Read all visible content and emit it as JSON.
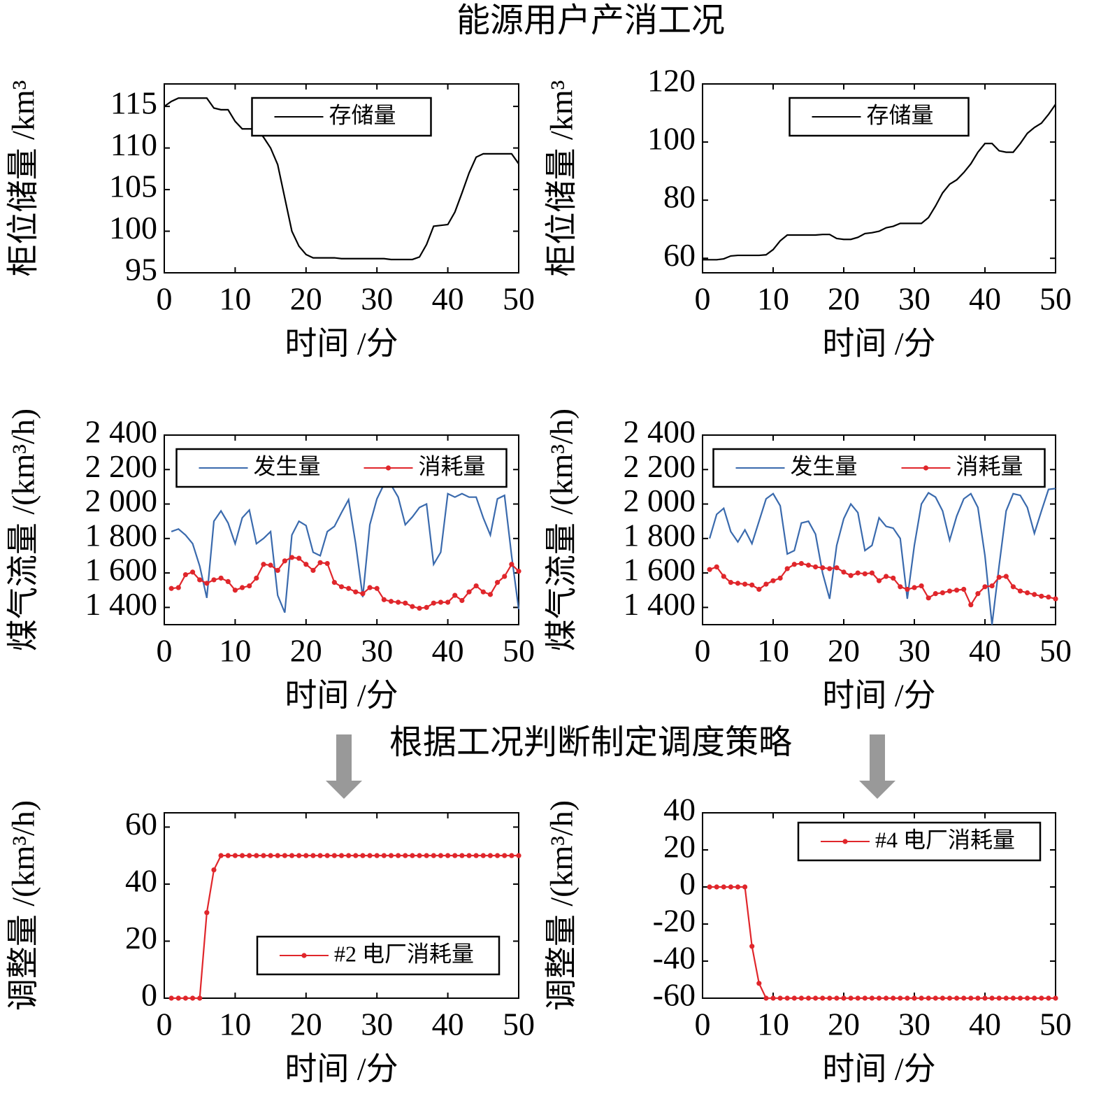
{
  "title": "能源用户产消工况",
  "caption": "根据工况判断制定调度策略",
  "chart_data": [
    {
      "type": "line",
      "xlabel": "时间 /分",
      "ylabel": "柜位储量 /km³",
      "legend": "upper center",
      "xlim": [
        0,
        50
      ],
      "xticks": [
        0,
        10,
        20,
        30,
        40,
        50
      ],
      "ylim": [
        95,
        117.7
      ],
      "yticks": [
        95,
        100,
        105,
        110,
        115
      ],
      "x": [
        0,
        1,
        2,
        3,
        4,
        5,
        6,
        7,
        8,
        9,
        10,
        11,
        12,
        13,
        14,
        15,
        16,
        17,
        18,
        19,
        20,
        21,
        22,
        23,
        24,
        25,
        26,
        27,
        28,
        29,
        30,
        31,
        32,
        33,
        34,
        35,
        36,
        37,
        38,
        39,
        40,
        41,
        42,
        43,
        44,
        45,
        46,
        47,
        48,
        49,
        50
      ],
      "series": [
        {
          "name": "存储量",
          "color": "#000000",
          "marker": false,
          "values": [
            115,
            115.6,
            116,
            116,
            116,
            116,
            116,
            114.8,
            114.6,
            114.6,
            113.2,
            112.3,
            112.3,
            112.3,
            111.3,
            110,
            108,
            104,
            100,
            98.2,
            97.2,
            96.8,
            96.8,
            96.8,
            96.8,
            96.7,
            96.7,
            96.7,
            96.7,
            96.7,
            96.7,
            96.7,
            96.6,
            96.6,
            96.6,
            96.6,
            96.9,
            98.4,
            100.6,
            100.7,
            100.8,
            102.3,
            104.6,
            107,
            108.9,
            109.3,
            109.3,
            109.3,
            109.3,
            109.3,
            108.1
          ]
        }
      ]
    },
    {
      "type": "line",
      "xlabel": "时间 /分",
      "ylabel": "柜位储量 /km³",
      "legend": "upper center",
      "xlim": [
        0,
        50
      ],
      "xticks": [
        0,
        10,
        20,
        30,
        40,
        50
      ],
      "ylim": [
        55,
        120
      ],
      "yticks": [
        60,
        80,
        100,
        120
      ],
      "x": [
        0,
        1,
        2,
        3,
        4,
        5,
        6,
        7,
        8,
        9,
        10,
        11,
        12,
        13,
        14,
        15,
        16,
        17,
        18,
        19,
        20,
        21,
        22,
        23,
        24,
        25,
        26,
        27,
        28,
        29,
        30,
        31,
        32,
        33,
        34,
        35,
        36,
        37,
        38,
        39,
        40,
        41,
        42,
        43,
        44,
        45,
        46,
        47,
        48,
        49,
        50
      ],
      "series": [
        {
          "name": "存储量",
          "color": "#000000",
          "marker": false,
          "values": [
            59.5,
            59.5,
            59.5,
            59.8,
            60.8,
            61,
            61,
            61,
            61,
            61.2,
            63,
            66,
            68,
            68,
            68,
            68,
            68,
            68.2,
            68.2,
            66.8,
            66.5,
            66.5,
            67.2,
            68.5,
            68.8,
            69.3,
            70.5,
            71,
            72,
            72,
            72,
            72,
            74,
            78,
            82.5,
            85.5,
            87,
            89.5,
            92.5,
            96.5,
            99.5,
            99.5,
            97,
            96.5,
            96.5,
            99.5,
            103,
            105,
            106.5,
            109.5,
            113
          ]
        }
      ]
    },
    {
      "type": "line",
      "xlabel": "时间 /分",
      "ylabel": "煤气流量 /(km³/h)",
      "legend": "upper center",
      "xlim": [
        0,
        50
      ],
      "xticks": [
        0,
        10,
        20,
        30,
        40,
        50
      ],
      "ylim": [
        1300,
        2400
      ],
      "yticks": [
        {
          "value": 1400,
          "label": "1 400"
        },
        {
          "value": 1600,
          "label": "1 600"
        },
        {
          "value": 1800,
          "label": "1 800"
        },
        {
          "value": 2000,
          "label": "2 000"
        },
        {
          "value": 2200,
          "label": "2 200"
        },
        {
          "value": 2400,
          "label": "2 400"
        }
      ],
      "x": [
        1,
        2,
        3,
        4,
        5,
        6,
        7,
        8,
        9,
        10,
        11,
        12,
        13,
        14,
        15,
        16,
        17,
        18,
        19,
        20,
        21,
        22,
        23,
        24,
        25,
        26,
        27,
        28,
        29,
        30,
        31,
        32,
        33,
        34,
        35,
        36,
        37,
        38,
        39,
        40,
        41,
        42,
        43,
        44,
        45,
        46,
        47,
        48,
        49,
        50
      ],
      "series": [
        {
          "name": "发生量",
          "color": "#3a6aad",
          "marker": false,
          "values": [
            1840,
            1855,
            1820,
            1770,
            1640,
            1455,
            1900,
            1960,
            1890,
            1770,
            1920,
            1965,
            1770,
            1800,
            1840,
            1470,
            1370,
            1820,
            1900,
            1875,
            1720,
            1700,
            1840,
            1870,
            1950,
            2025,
            1770,
            1460,
            1880,
            2030,
            2115,
            2110,
            2040,
            1880,
            1925,
            1980,
            2000,
            1650,
            1720,
            2060,
            2040,
            2060,
            2040,
            2040,
            1920,
            1820,
            2030,
            2050,
            1700,
            1390
          ]
        },
        {
          "name": "消耗量",
          "color": "#e0262b",
          "marker": true,
          "values": [
            1510,
            1515,
            1590,
            1605,
            1560,
            1540,
            1560,
            1570,
            1550,
            1500,
            1515,
            1525,
            1570,
            1650,
            1645,
            1615,
            1670,
            1690,
            1685,
            1650,
            1615,
            1660,
            1655,
            1545,
            1520,
            1510,
            1490,
            1480,
            1515,
            1510,
            1445,
            1435,
            1430,
            1425,
            1405,
            1395,
            1400,
            1425,
            1430,
            1430,
            1470,
            1440,
            1490,
            1525,
            1490,
            1475,
            1545,
            1580,
            1650,
            1610
          ]
        }
      ]
    },
    {
      "type": "line",
      "xlabel": "时间 /分",
      "ylabel": "煤气流量 /(km³/h)",
      "legend": "upper center",
      "xlim": [
        0,
        50
      ],
      "xticks": [
        0,
        10,
        20,
        30,
        40,
        50
      ],
      "ylim": [
        1300,
        2400
      ],
      "yticks": [
        {
          "value": 1400,
          "label": "1 400"
        },
        {
          "value": 1600,
          "label": "1 600"
        },
        {
          "value": 1800,
          "label": "1 800"
        },
        {
          "value": 2000,
          "label": "2 000"
        },
        {
          "value": 2200,
          "label": "2 200"
        },
        {
          "value": 2400,
          "label": "2 400"
        }
      ],
      "x": [
        1,
        2,
        3,
        4,
        5,
        6,
        7,
        8,
        9,
        10,
        11,
        12,
        13,
        14,
        15,
        16,
        17,
        18,
        19,
        20,
        21,
        22,
        23,
        24,
        25,
        26,
        27,
        28,
        29,
        30,
        31,
        32,
        33,
        34,
        35,
        36,
        37,
        38,
        39,
        40,
        41,
        42,
        43,
        44,
        45,
        46,
        47,
        48,
        49,
        50
      ],
      "series": [
        {
          "name": "发生量",
          "color": "#3a6aad",
          "marker": false,
          "values": [
            1800,
            1940,
            1975,
            1840,
            1780,
            1850,
            1770,
            1900,
            2030,
            2060,
            1990,
            1710,
            1730,
            1890,
            1900,
            1825,
            1600,
            1450,
            1760,
            1915,
            2000,
            1950,
            1730,
            1760,
            1920,
            1870,
            1860,
            1800,
            1450,
            1760,
            2000,
            2065,
            2040,
            1960,
            1790,
            1930,
            2030,
            2060,
            1980,
            1700,
            1300,
            1640,
            1960,
            2060,
            2050,
            1980,
            1830,
            1960,
            2085,
            2090
          ]
        },
        {
          "name": "消耗量",
          "color": "#e0262b",
          "marker": true,
          "values": [
            1620,
            1635,
            1580,
            1545,
            1540,
            1535,
            1530,
            1505,
            1535,
            1555,
            1570,
            1625,
            1650,
            1655,
            1645,
            1635,
            1630,
            1625,
            1630,
            1605,
            1585,
            1600,
            1595,
            1600,
            1555,
            1580,
            1570,
            1520,
            1505,
            1515,
            1525,
            1455,
            1480,
            1485,
            1495,
            1500,
            1505,
            1415,
            1480,
            1520,
            1525,
            1575,
            1580,
            1520,
            1495,
            1485,
            1475,
            1465,
            1460,
            1450
          ]
        }
      ]
    },
    {
      "type": "line",
      "xlabel": "时间 /分",
      "ylabel": "调整量 /(km³/h)",
      "legend": "lower right",
      "xlim": [
        0,
        50
      ],
      "xticks": [
        0,
        10,
        20,
        30,
        40,
        50
      ],
      "ylim": [
        0,
        65
      ],
      "yticks": [
        0,
        20,
        40,
        60
      ],
      "x": [
        1,
        2,
        3,
        4,
        5,
        6,
        7,
        8,
        9,
        10,
        11,
        12,
        13,
        14,
        15,
        16,
        17,
        18,
        19,
        20,
        21,
        22,
        23,
        24,
        25,
        26,
        27,
        28,
        29,
        30,
        31,
        32,
        33,
        34,
        35,
        36,
        37,
        38,
        39,
        40,
        41,
        42,
        43,
        44,
        45,
        46,
        47,
        48,
        49,
        50
      ],
      "series": [
        {
          "name": "#2 电厂消耗量",
          "color": "#e0262b",
          "marker": true,
          "values": [
            0,
            0,
            0,
            0,
            0,
            30,
            45,
            50,
            50,
            50,
            50,
            50,
            50,
            50,
            50,
            50,
            50,
            50,
            50,
            50,
            50,
            50,
            50,
            50,
            50,
            50,
            50,
            50,
            50,
            50,
            50,
            50,
            50,
            50,
            50,
            50,
            50,
            50,
            50,
            50,
            50,
            50,
            50,
            50,
            50,
            50,
            50,
            50,
            50,
            50
          ]
        }
      ]
    },
    {
      "type": "line",
      "xlabel": "时间 /分",
      "ylabel": "调整量 /(km³/h)",
      "legend": "upper right",
      "xlim": [
        0,
        50
      ],
      "xticks": [
        0,
        10,
        20,
        30,
        40,
        50
      ],
      "ylim": [
        -60,
        40
      ],
      "yticks": [
        -60,
        -40,
        -20,
        0,
        20,
        40
      ],
      "x": [
        1,
        2,
        3,
        4,
        5,
        6,
        7,
        8,
        9,
        10,
        11,
        12,
        13,
        14,
        15,
        16,
        17,
        18,
        19,
        20,
        21,
        22,
        23,
        24,
        25,
        26,
        27,
        28,
        29,
        30,
        31,
        32,
        33,
        34,
        35,
        36,
        37,
        38,
        39,
        40,
        41,
        42,
        43,
        44,
        45,
        46,
        47,
        48,
        49,
        50
      ],
      "series": [
        {
          "name": "#4 电厂消耗量",
          "color": "#e0262b",
          "marker": true,
          "values": [
            0,
            0,
            0,
            0,
            0,
            0,
            -32,
            -52,
            -60,
            -60,
            -60,
            -60,
            -60,
            -60,
            -60,
            -60,
            -60,
            -60,
            -60,
            -60,
            -60,
            -60,
            -60,
            -60,
            -60,
            -60,
            -60,
            -60,
            -60,
            -60,
            -60,
            -60,
            -60,
            -60,
            -60,
            -60,
            -60,
            -60,
            -60,
            -60,
            -60,
            -60,
            -60,
            -60,
            -60,
            -60,
            -60,
            -60,
            -60,
            -60
          ]
        }
      ]
    }
  ]
}
